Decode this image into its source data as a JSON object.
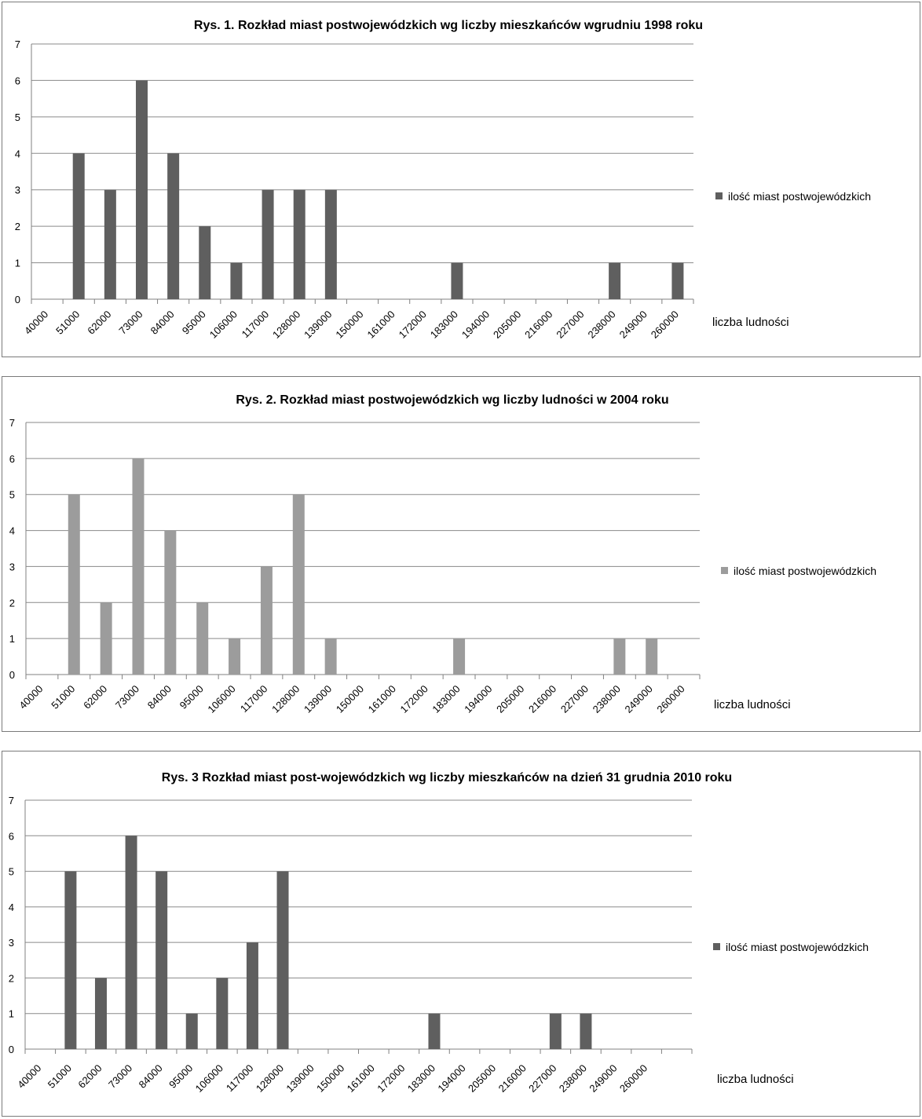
{
  "chart_data": [
    {
      "type": "bar",
      "title": "Rys. 1. Rozkład miast postwojewódzkich wg liczby mieszkańców wgrudniu 1998 roku",
      "xlabel": "liczba ludności",
      "ylabel": "",
      "ylim": [
        0,
        7
      ],
      "yticks": [
        "0",
        "1",
        "2",
        "3",
        "4",
        "5",
        "6",
        "7"
      ],
      "grid": true,
      "legend_position": "right",
      "categories": [
        "40000",
        "51000",
        "62000",
        "73000",
        "84000",
        "95000",
        "106000",
        "117000",
        "128000",
        "139000",
        "150000",
        "161000",
        "172000",
        "183000",
        "194000",
        "205000",
        "216000",
        "227000",
        "238000",
        "249000",
        "260000"
      ],
      "series": [
        {
          "name": "ilość miast postwojewódzkich",
          "color": "#5f5f5f",
          "values": [
            0,
            4,
            3,
            6,
            4,
            2,
            1,
            3,
            3,
            3,
            0,
            0,
            0,
            1,
            0,
            0,
            0,
            0,
            1,
            0,
            1
          ]
        }
      ]
    },
    {
      "type": "bar",
      "title": "Rys. 2. Rozkład miast postwojewódzkich wg liczby ludności w  2004 roku",
      "xlabel": "liczba ludności",
      "ylabel": "",
      "ylim": [
        0,
        7
      ],
      "yticks": [
        "0",
        "1",
        "2",
        "3",
        "4",
        "5",
        "6",
        "7"
      ],
      "grid": true,
      "legend_position": "right",
      "categories": [
        "40000",
        "51000",
        "62000",
        "73000",
        "84000",
        "95000",
        "106000",
        "117000",
        "128000",
        "139000",
        "150000",
        "161000",
        "172000",
        "183000",
        "194000",
        "205000",
        "216000",
        "227000",
        "238000",
        "249000",
        "260000"
      ],
      "series": [
        {
          "name": "ilość miast postwojewódzkich",
          "color": "#9c9c9c",
          "values": [
            0,
            5,
            2,
            6,
            4,
            2,
            1,
            3,
            5,
            1,
            0,
            0,
            0,
            1,
            0,
            0,
            0,
            0,
            1,
            1,
            0
          ]
        }
      ]
    },
    {
      "type": "bar",
      "title": "Rys. 3 Rozkład miast post-wojewódzkich wg liczby mieszkańców na dzień 31 grudnia 2010 roku",
      "xlabel": "liczba ludności",
      "ylabel": "",
      "ylim": [
        0,
        7
      ],
      "yticks": [
        "0",
        "1",
        "2",
        "3",
        "4",
        "5",
        "6",
        "7"
      ],
      "grid": true,
      "legend_position": "right",
      "categories": [
        "40000",
        "51000",
        "62000",
        "73000",
        "84000",
        "95000",
        "106000",
        "117000",
        "128000",
        "139000",
        "150000",
        "161000",
        "172000",
        "183000",
        "194000",
        "205000",
        "216000",
        "227000",
        "238000",
        "249000",
        "260000",
        ""
      ],
      "series": [
        {
          "name": "ilość miast postwojewódzkich",
          "color": "#5f5f5f",
          "values": [
            0,
            5,
            2,
            6,
            5,
            1,
            2,
            3,
            5,
            0,
            0,
            0,
            0,
            1,
            0,
            0,
            0,
            1,
            1,
            0,
            0,
            0
          ]
        }
      ]
    }
  ]
}
